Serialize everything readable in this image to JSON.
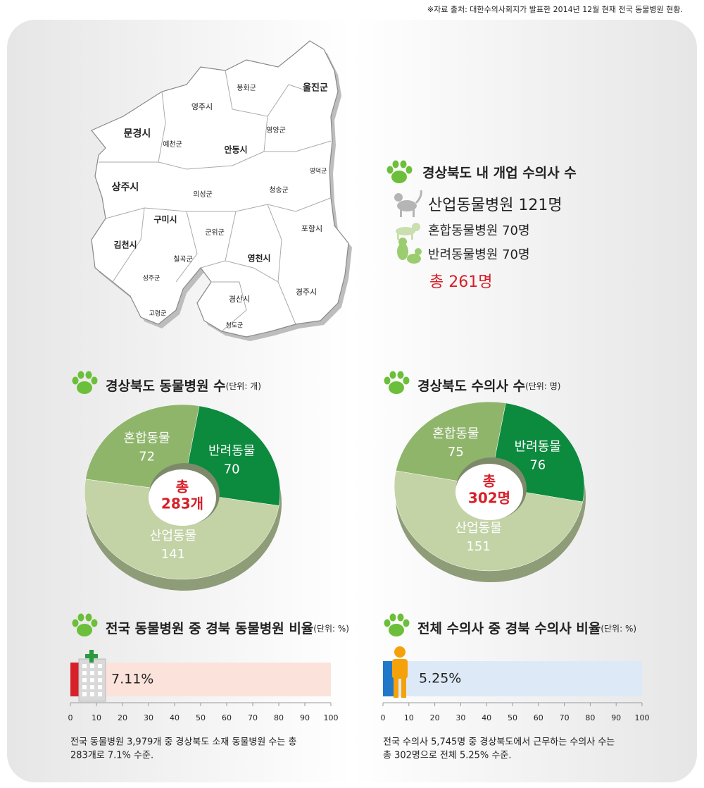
{
  "source": "※자료 출처: 대한수의사회지가 발표한 2014년 12월 현재 전국 동물병원 현황.",
  "map": {
    "regions": [
      "봉화군",
      "울진군",
      "영주시",
      "문경시",
      "예천군",
      "영양군",
      "안동시",
      "영덕군",
      "상주시",
      "의성군",
      "청송군",
      "구미시",
      "군위군",
      "포항시",
      "김천시",
      "칠곡군",
      "영천시",
      "성주군",
      "경산시",
      "경주시",
      "고령군",
      "청도군"
    ]
  },
  "summary": {
    "title": "경상북도 내 개업 수의사 수",
    "items": [
      "산업동물병원 121명",
      "혼합동물병원 70명",
      "반려동물병원 70명"
    ],
    "total": "총 261명"
  },
  "chart_data": [
    {
      "type": "pie",
      "title": "경상북도 동물병원 수",
      "unit": "(단위: 개)",
      "categories": [
        "혼합동물",
        "반려동물",
        "산업동물"
      ],
      "values": [
        72,
        70,
        141
      ],
      "colors": [
        "#8fb56b",
        "#0c8a3e",
        "#c3d3a6"
      ],
      "center_label": "총",
      "total_label": "283개"
    },
    {
      "type": "pie",
      "title": "경상북도 수의사 수",
      "unit": "(단위: 명)",
      "categories": [
        "혼합동물",
        "반려동물",
        "산업동물"
      ],
      "values": [
        75,
        76,
        151
      ],
      "colors": [
        "#8fb56b",
        "#0c8a3e",
        "#c3d3a6"
      ],
      "center_label": "총",
      "total_label": "302명"
    },
    {
      "type": "bar",
      "title": "전국 동물병원 중 경북 동물병원 비율",
      "unit": "(단위: %)",
      "values": [
        7.11
      ],
      "value_labels": [
        "7.11%"
      ],
      "color": "#d7202a",
      "track_color": "#fbe3dc",
      "xlim": [
        0,
        100
      ],
      "xticks": [
        0,
        10,
        20,
        30,
        40,
        50,
        60,
        70,
        80,
        90,
        100
      ],
      "note": [
        "전국 동물병원 3,979개 중 경상북도 소재 동물병원 수는 총",
        "283개로 7.1% 수준."
      ]
    },
    {
      "type": "bar",
      "title": "전체 수의사 중 경북 수의사 비율",
      "unit": "(단위: %)",
      "values": [
        5.25
      ],
      "value_labels": [
        "5.25%"
      ],
      "color": "#1f78c8",
      "track_color": "#dde9f6",
      "xlim": [
        0,
        100
      ],
      "xticks": [
        0,
        10,
        20,
        30,
        40,
        50,
        60,
        70,
        80,
        90,
        100
      ],
      "note": [
        "전국 수의사 5,745명 중 경상북도에서 근무하는 수의사 수는",
        "총 302명으로 전체 5.25% 수준."
      ]
    }
  ]
}
